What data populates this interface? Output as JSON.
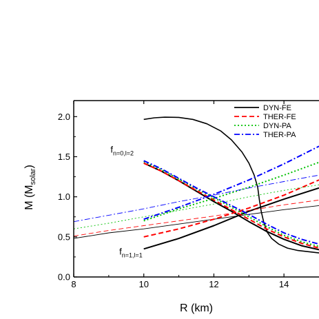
{
  "chart_data": {
    "type": "line",
    "xlabel": "R (km)",
    "ylabel_main": "M (M",
    "ylabel_sub": "solar",
    "ylabel_close": ")",
    "xlim": [
      8,
      15
    ],
    "ylim": [
      0.0,
      2.2
    ],
    "x_ticks": [
      8,
      10,
      12,
      14
    ],
    "x_tick_labels": [
      "8",
      "10",
      "12",
      "14"
    ],
    "y_ticks": [
      0.0,
      0.5,
      1.0,
      1.5,
      2.0
    ],
    "y_tick_labels": [
      "0.0",
      "0.5",
      "1.0",
      "1.5",
      "2.0"
    ],
    "grid": false,
    "legend_position": "top-right",
    "series": [
      {
        "name": "DYN-FE",
        "color": "#000000",
        "dash": "solid",
        "mr_curve": [
          [
            10.0,
            1.965
          ],
          [
            10.3,
            1.985
          ],
          [
            10.6,
            1.993
          ],
          [
            11.0,
            1.99
          ],
          [
            11.4,
            1.965
          ],
          [
            11.8,
            1.91
          ],
          [
            12.2,
            1.82
          ],
          [
            12.5,
            1.71
          ],
          [
            12.8,
            1.56
          ],
          [
            13.0,
            1.42
          ],
          [
            13.15,
            1.27
          ],
          [
            13.25,
            1.12
          ],
          [
            13.3,
            0.96
          ],
          [
            13.35,
            0.82
          ],
          [
            13.42,
            0.69
          ],
          [
            13.52,
            0.56
          ],
          [
            13.65,
            0.48
          ],
          [
            13.85,
            0.41
          ],
          [
            14.1,
            0.36
          ],
          [
            14.4,
            0.33
          ],
          [
            15.0,
            0.3
          ]
        ],
        "f01_curve": [
          [
            10.0,
            1.42
          ],
          [
            10.5,
            1.32
          ],
          [
            11.0,
            1.2
          ],
          [
            11.5,
            1.07
          ],
          [
            12.0,
            0.94
          ],
          [
            12.5,
            0.82
          ],
          [
            13.0,
            0.69
          ],
          [
            13.5,
            0.57
          ],
          [
            14.0,
            0.47
          ],
          [
            14.5,
            0.39
          ],
          [
            15.0,
            0.34
          ]
        ],
        "f11_curve": [
          [
            10.0,
            0.35
          ],
          [
            11.0,
            0.48
          ],
          [
            12.0,
            0.64
          ],
          [
            13.0,
            0.82
          ],
          [
            14.0,
            0.97
          ],
          [
            15.0,
            1.11
          ]
        ],
        "thin_line": [
          [
            8.0,
            0.48
          ],
          [
            9.0,
            0.55
          ],
          [
            10.0,
            0.6
          ],
          [
            11.0,
            0.66
          ],
          [
            12.0,
            0.72
          ],
          [
            13.0,
            0.78
          ],
          [
            14.0,
            0.84
          ],
          [
            15.0,
            0.89
          ]
        ]
      },
      {
        "name": "THER-FE",
        "color": "#ff0000",
        "dash": "dash",
        "f01_curve": [
          [
            10.0,
            1.42
          ],
          [
            10.5,
            1.32
          ],
          [
            11.0,
            1.2
          ],
          [
            11.5,
            1.08
          ],
          [
            12.0,
            0.96
          ],
          [
            12.5,
            0.84
          ],
          [
            13.0,
            0.72
          ],
          [
            13.5,
            0.6
          ],
          [
            14.0,
            0.5
          ],
          [
            14.5,
            0.42
          ],
          [
            15.0,
            0.36
          ]
        ],
        "f11_curve": [
          [
            10.0,
            0.5
          ],
          [
            11.0,
            0.6
          ],
          [
            12.0,
            0.72
          ],
          [
            13.0,
            0.86
          ],
          [
            14.0,
            1.02
          ],
          [
            15.0,
            1.21
          ]
        ],
        "thin_line": [
          [
            8.0,
            0.51
          ],
          [
            9.0,
            0.58
          ],
          [
            10.0,
            0.64
          ],
          [
            11.0,
            0.7
          ],
          [
            12.0,
            0.76
          ],
          [
            13.0,
            0.83
          ],
          [
            14.0,
            0.9
          ],
          [
            15.0,
            0.96
          ]
        ]
      },
      {
        "name": "DYN-PA",
        "color": "#00c000",
        "dash": "dot",
        "f01_curve": [
          [
            10.0,
            1.44
          ],
          [
            10.5,
            1.34
          ],
          [
            11.0,
            1.22
          ],
          [
            11.5,
            1.1
          ],
          [
            12.0,
            0.99
          ],
          [
            12.5,
            0.87
          ],
          [
            13.0,
            0.75
          ],
          [
            13.5,
            0.63
          ],
          [
            14.0,
            0.52
          ],
          [
            14.5,
            0.44
          ],
          [
            15.0,
            0.38
          ]
        ],
        "f11_curve": [
          [
            10.0,
            0.7
          ],
          [
            11.0,
            0.85
          ],
          [
            12.0,
            0.98
          ],
          [
            13.0,
            1.12
          ],
          [
            14.0,
            1.27
          ],
          [
            15.0,
            1.43
          ]
        ],
        "thin_line": [
          [
            8.0,
            0.6
          ],
          [
            9.0,
            0.67
          ],
          [
            10.0,
            0.75
          ],
          [
            11.0,
            0.83
          ],
          [
            12.0,
            0.91
          ],
          [
            13.0,
            1.0
          ],
          [
            14.0,
            1.08
          ],
          [
            15.0,
            1.15
          ]
        ]
      },
      {
        "name": "THER-PA",
        "color": "#0000ff",
        "dash": "dashdot",
        "f01_curve": [
          [
            10.0,
            1.45
          ],
          [
            10.5,
            1.35
          ],
          [
            11.0,
            1.23
          ],
          [
            11.5,
            1.11
          ],
          [
            12.0,
            1.0
          ],
          [
            12.5,
            0.89
          ],
          [
            13.0,
            0.78
          ],
          [
            13.5,
            0.66
          ],
          [
            14.0,
            0.55
          ],
          [
            14.5,
            0.47
          ],
          [
            15.0,
            0.41
          ]
        ],
        "f11_curve": [
          [
            10.0,
            0.72
          ],
          [
            11.0,
            0.87
          ],
          [
            12.0,
            1.03
          ],
          [
            13.0,
            1.21
          ],
          [
            14.0,
            1.41
          ],
          [
            15.0,
            1.63
          ]
        ],
        "thin_line": [
          [
            8.0,
            0.69
          ],
          [
            9.0,
            0.77
          ],
          [
            10.0,
            0.85
          ],
          [
            11.0,
            0.94
          ],
          [
            12.0,
            1.02
          ],
          [
            13.0,
            1.11
          ],
          [
            14.0,
            1.19
          ],
          [
            15.0,
            1.27
          ]
        ]
      }
    ],
    "annotations": [
      {
        "text": "f",
        "sub": "n=0,l=2",
        "x": 9.05,
        "y": 1.55
      },
      {
        "text": "f",
        "sub": "n=1,l=1",
        "x": 9.3,
        "y": 0.28
      }
    ]
  }
}
